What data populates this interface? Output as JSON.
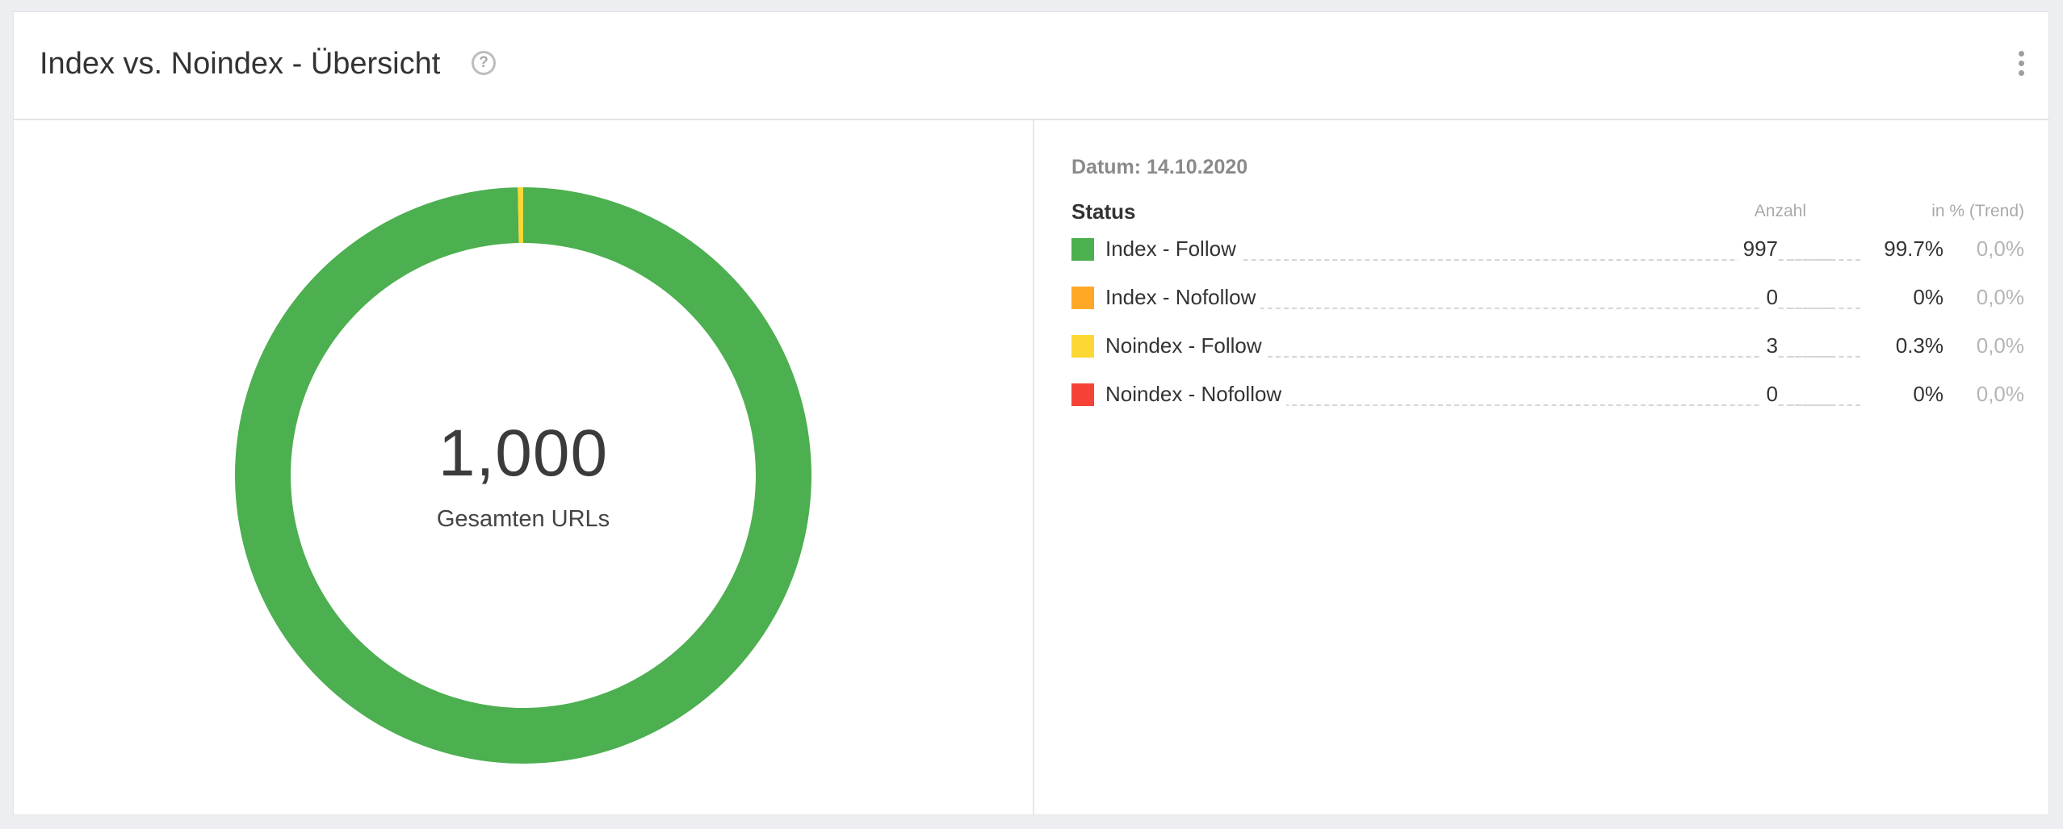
{
  "header": {
    "title": "Index vs. Noindex - Übersicht",
    "help_icon": "help-circle-icon",
    "menu_icon": "more-vertical-icon"
  },
  "summary": {
    "total_value": "1,000",
    "total_label": "Gesamten URLs"
  },
  "legend": {
    "date_text": "Datum: 14.10.2020",
    "col_status": "Status",
    "col_count": "Anzahl",
    "col_percent": "in % (Trend)"
  },
  "chart_data": {
    "type": "pie",
    "categories": [
      "Index - Follow",
      "Index - Nofollow",
      "Noindex - Follow",
      "Noindex - Nofollow"
    ],
    "values": [
      997,
      0,
      3,
      0
    ],
    "percent_labels": [
      "99.7%",
      "0%",
      "0.3%",
      "0%"
    ],
    "trend_labels": [
      "0,0%",
      "0,0%",
      "0,0%",
      "0,0%"
    ],
    "colors": [
      "#4caf50",
      "#ffa726",
      "#fdd835",
      "#f44336"
    ],
    "donut": true,
    "total": 1000
  }
}
